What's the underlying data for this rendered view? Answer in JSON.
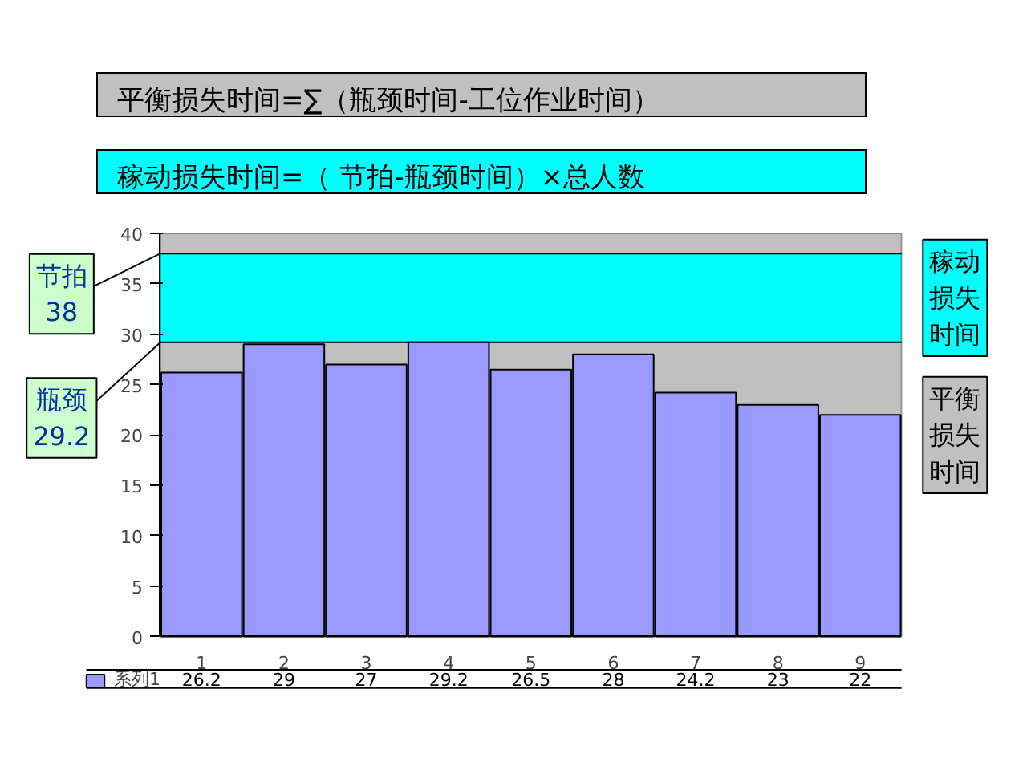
{
  "chart_data": {
    "type": "bar",
    "categories": [
      "1",
      "2",
      "3",
      "4",
      "5",
      "6",
      "7",
      "8",
      "9"
    ],
    "series": [
      {
        "name": "系列1",
        "color": "#9999ff",
        "values": [
          26.2,
          29,
          27,
          29.2,
          26.5,
          28,
          24.2,
          23,
          22
        ]
      }
    ],
    "data_labels": true,
    "ylim": [
      0,
      40
    ],
    "yticks": [
      0,
      5,
      10,
      15,
      20,
      25,
      30,
      35,
      40
    ],
    "bands": [
      {
        "axis": "y",
        "from": 0,
        "to": 40,
        "color": "#c0c0c0",
        "label": "平衡损失时间"
      },
      {
        "axis": "y",
        "from": 29.2,
        "to": 38,
        "color": "#00ffff",
        "label": "稼动损失时间"
      }
    ],
    "ref_lines": [
      {
        "axis": "y",
        "value": 38,
        "label": "节拍\n38",
        "color": "#000000"
      },
      {
        "axis": "y",
        "value": 29.2,
        "label": "瓶颈\n29.2",
        "color": "#000000"
      }
    ],
    "annotations": [
      "平衡损失时间=∑（瓶颈时间-工位作业时间）",
      "稼动损失时间=（ 节拍-瓶颈时间）×总人数"
    ]
  }
}
